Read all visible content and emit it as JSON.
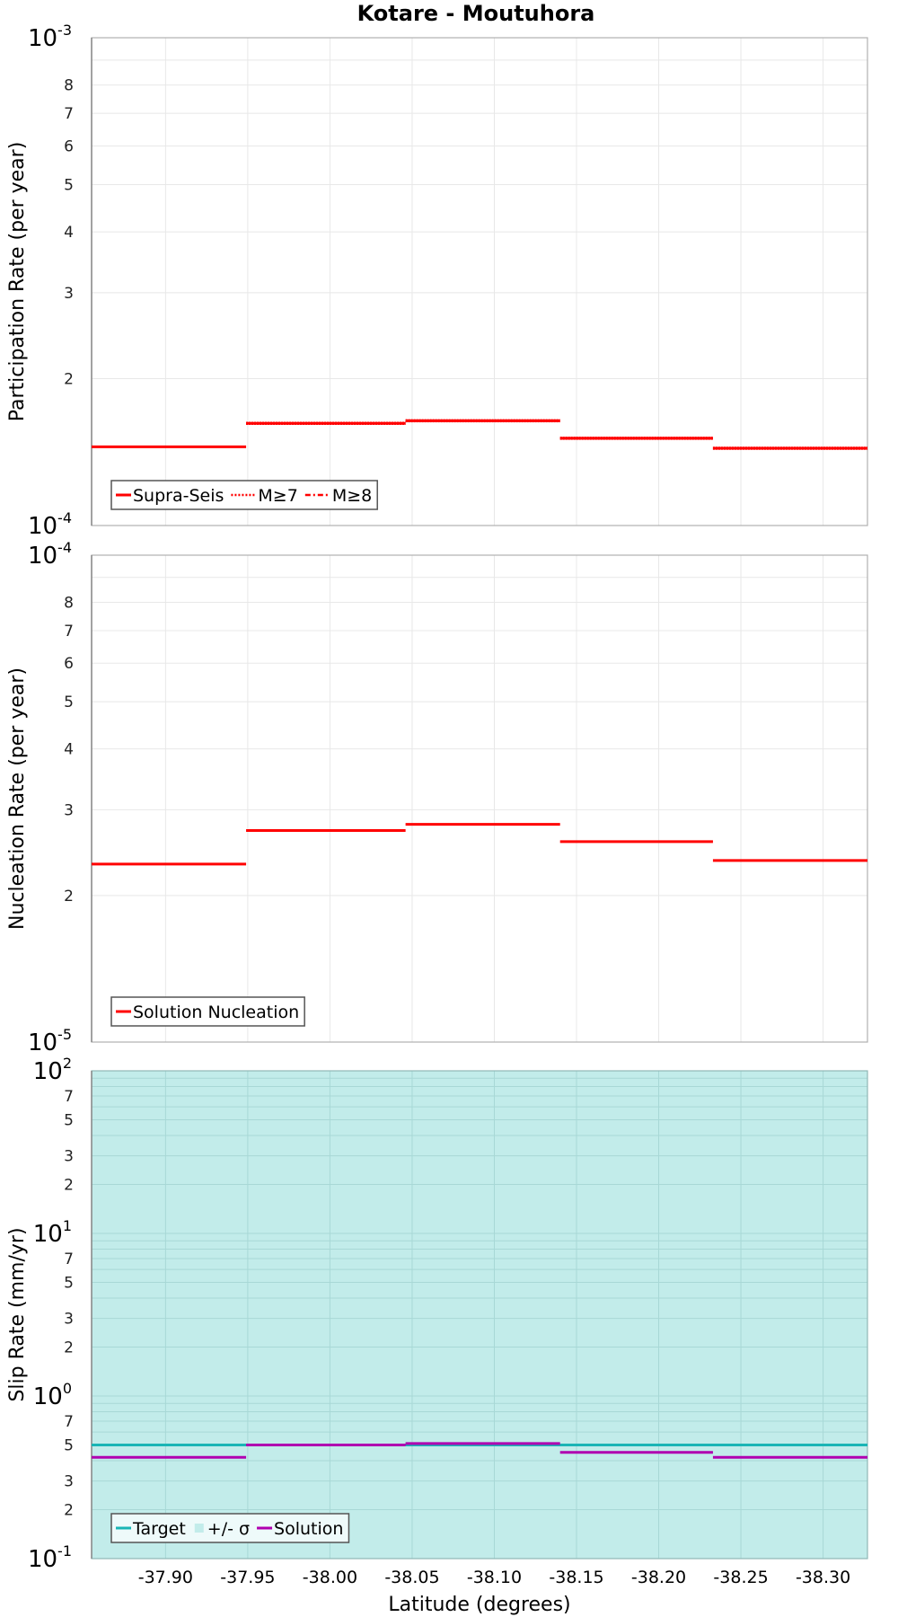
{
  "title": "Kotare - Moutuhora",
  "colors": {
    "red": "#ff0000",
    "target": "#1ab5b5",
    "sigma_fill": "#c2ecea",
    "solution": "#b000b0",
    "grid": "#e8e8e8",
    "frame": "#b0b0b0"
  },
  "xaxis": {
    "label": "Latitude (degrees)",
    "ticks": [
      "-37.90",
      "-37.95",
      "-38.00",
      "-38.05",
      "-38.10",
      "-38.15",
      "-38.20",
      "-38.25",
      "-38.30"
    ]
  },
  "panels": [
    {
      "ylabel": "Participation Rate (per year)",
      "top_label": {
        "base": "10",
        "exp": "-3"
      },
      "bottom_label": {
        "base": "10",
        "exp": "-4"
      },
      "minor_labels": [
        "8",
        "7",
        "6",
        "5",
        "4",
        "3",
        "2"
      ],
      "legend": [
        "Supra-Seis",
        "M≥7",
        "M≥8"
      ]
    },
    {
      "ylabel": "Nucleation Rate (per year)",
      "top_label": {
        "base": "10",
        "exp": "-4"
      },
      "bottom_label": {
        "base": "10",
        "exp": "-5"
      },
      "minor_labels": [
        "8",
        "7",
        "6",
        "5",
        "4",
        "3",
        "2"
      ],
      "legend": [
        "Solution Nucleation"
      ]
    },
    {
      "ylabel": "Slip Rate (mm/yr)",
      "decade_labels": [
        {
          "base": "10",
          "exp": "2"
        },
        {
          "base": "10",
          "exp": "1"
        },
        {
          "base": "10",
          "exp": "0"
        },
        {
          "base": "10",
          "exp": "-1"
        }
      ],
      "minor_labels": [
        "7",
        "5",
        "3",
        "2"
      ],
      "legend": [
        "Target",
        "+/- σ",
        "Solution"
      ]
    }
  ],
  "chart_data": [
    {
      "type": "line",
      "title": "Kotare - Moutuhora",
      "xlabel": "Latitude (degrees)",
      "ylabel": "Participation Rate (per year)",
      "yscale": "log",
      "ylim": [
        0.0001,
        0.001
      ],
      "xlim": [
        -37.855,
        -38.327
      ],
      "grid": true,
      "legend_position": "lower-left",
      "series": [
        {
          "name": "Supra-Seis",
          "style": "solid",
          "color": "#ff0000",
          "segments": [
            {
              "x": [
                -37.855,
                -37.949
              ],
              "y": 0.000145
            },
            {
              "x": [
                -37.949,
                -38.046
              ],
              "y": 0.000162
            },
            {
              "x": [
                -38.046,
                -38.14
              ],
              "y": 0.000164
            },
            {
              "x": [
                -38.14,
                -38.233
              ],
              "y": 0.000151
            },
            {
              "x": [
                -38.233,
                -38.327
              ],
              "y": 0.000144
            }
          ]
        },
        {
          "name": "M≥7",
          "style": "dotted",
          "color": "#ff0000",
          "segments": [
            {
              "x": [
                -37.949,
                -38.046
              ],
              "y": 0.000162
            },
            {
              "x": [
                -38.046,
                -38.14
              ],
              "y": 0.000164
            },
            {
              "x": [
                -38.14,
                -38.233
              ],
              "y": 0.000151
            },
            {
              "x": [
                -38.233,
                -38.327
              ],
              "y": 0.000144
            }
          ]
        },
        {
          "name": "M≥8",
          "style": "dash-dot",
          "color": "#ff0000",
          "segments": []
        }
      ]
    },
    {
      "type": "line",
      "xlabel": "Latitude (degrees)",
      "ylabel": "Nucleation Rate (per year)",
      "yscale": "log",
      "ylim": [
        1e-05,
        0.0001
      ],
      "grid": true,
      "legend_position": "lower-left",
      "series": [
        {
          "name": "Solution Nucleation",
          "style": "solid",
          "color": "#ff0000",
          "segments": [
            {
              "x": [
                -37.855,
                -37.949
              ],
              "y": 2.32e-05
            },
            {
              "x": [
                -37.949,
                -38.046
              ],
              "y": 2.72e-05
            },
            {
              "x": [
                -38.046,
                -38.14
              ],
              "y": 2.8e-05
            },
            {
              "x": [
                -38.14,
                -38.233
              ],
              "y": 2.58e-05
            },
            {
              "x": [
                -38.233,
                -38.327
              ],
              "y": 2.36e-05
            }
          ]
        }
      ]
    },
    {
      "type": "line",
      "xlabel": "Latitude (degrees)",
      "ylabel": "Slip Rate (mm/yr)",
      "yscale": "log",
      "ylim": [
        0.1,
        100
      ],
      "grid": true,
      "legend_position": "lower-left",
      "series": [
        {
          "name": "Target",
          "style": "solid",
          "color": "#1ab5b5",
          "segments": [
            {
              "x": [
                -37.855,
                -38.327
              ],
              "y": 0.5
            }
          ]
        },
        {
          "name": "+/- σ",
          "style": "fill",
          "color": "#c2ecea",
          "range": [
            0.1,
            100
          ]
        },
        {
          "name": "Solution",
          "style": "solid",
          "color": "#b000b0",
          "segments": [
            {
              "x": [
                -37.855,
                -37.949
              ],
              "y": 0.42
            },
            {
              "x": [
                -37.949,
                -38.046
              ],
              "y": 0.5
            },
            {
              "x": [
                -38.046,
                -38.14
              ],
              "y": 0.51
            },
            {
              "x": [
                -38.14,
                -38.233
              ],
              "y": 0.45
            },
            {
              "x": [
                -38.233,
                -38.327
              ],
              "y": 0.42
            }
          ]
        }
      ]
    }
  ]
}
